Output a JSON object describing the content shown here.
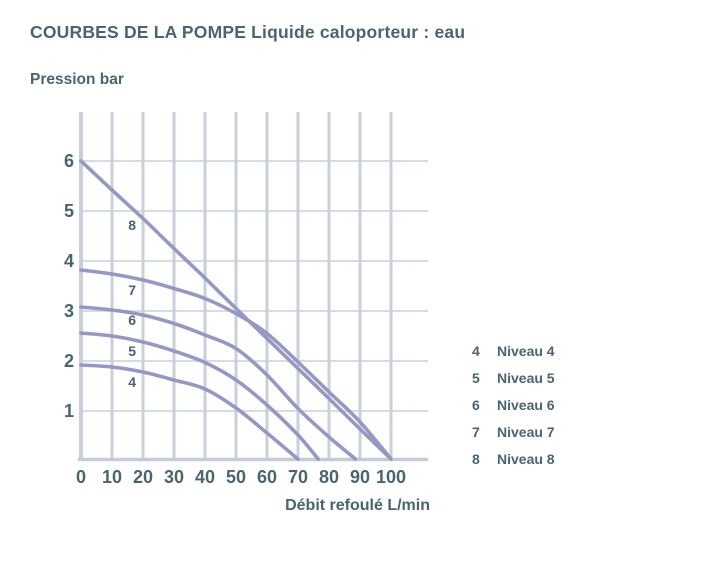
{
  "header": {
    "title_main": "COURBES DE LA POMPE",
    "title_sub": "Liquide caloporteur : eau"
  },
  "chart_data": {
    "type": "line",
    "title": "COURBES DE LA POMPE Liquide caloporteur : eau",
    "ylabel": "Pression bar",
    "xlabel": "Débit refoulé L/min",
    "xlim": [
      0,
      110
    ],
    "ylim": [
      0,
      7
    ],
    "x_ticks": [
      0,
      10,
      20,
      30,
      40,
      50,
      60,
      70,
      80,
      90,
      100
    ],
    "y_ticks": [
      1,
      2,
      3,
      4,
      5,
      6
    ],
    "grid": true,
    "legend_position": "right-middle",
    "colors": {
      "curve": "#9598c5",
      "grid": "#c8d1db",
      "axis": "#c3ccd7",
      "text": "#4a6470",
      "background": "#ffffff"
    },
    "series": [
      {
        "name": "Niveau 8",
        "curve_label": "8",
        "label_pos": [
          16.5,
          4.72
        ],
        "points": [
          [
            0,
            6.0
          ],
          [
            10,
            5.42
          ],
          [
            20,
            4.85
          ],
          [
            30,
            4.25
          ],
          [
            40,
            3.66
          ],
          [
            50,
            3.05
          ],
          [
            60,
            2.45
          ],
          [
            70,
            1.85
          ],
          [
            80,
            1.25
          ],
          [
            90,
            0.64
          ],
          [
            100,
            0.04
          ]
        ]
      },
      {
        "name": "Niveau 7",
        "curve_label": "7",
        "label_pos": [
          16.5,
          3.42
        ],
        "points": [
          [
            0,
            3.82
          ],
          [
            10,
            3.74
          ],
          [
            20,
            3.62
          ],
          [
            30,
            3.45
          ],
          [
            40,
            3.25
          ],
          [
            50,
            2.95
          ],
          [
            60,
            2.55
          ],
          [
            70,
            1.98
          ],
          [
            80,
            1.38
          ],
          [
            90,
            0.78
          ],
          [
            100,
            0.04
          ]
        ]
      },
      {
        "name": "Niveau 6",
        "curve_label": "6",
        "label_pos": [
          16.5,
          2.82
        ],
        "points": [
          [
            0,
            3.08
          ],
          [
            10,
            3.02
          ],
          [
            20,
            2.92
          ],
          [
            30,
            2.75
          ],
          [
            40,
            2.52
          ],
          [
            50,
            2.25
          ],
          [
            60,
            1.72
          ],
          [
            70,
            1.05
          ],
          [
            80,
            0.48
          ],
          [
            88.5,
            0.04
          ]
        ]
      },
      {
        "name": "Niveau 5",
        "curve_label": "5",
        "label_pos": [
          16.5,
          2.2
        ],
        "points": [
          [
            0,
            2.56
          ],
          [
            10,
            2.5
          ],
          [
            20,
            2.38
          ],
          [
            30,
            2.2
          ],
          [
            40,
            1.97
          ],
          [
            50,
            1.62
          ],
          [
            60,
            1.12
          ],
          [
            70,
            0.52
          ],
          [
            76.5,
            0.04
          ]
        ]
      },
      {
        "name": "Niveau 4",
        "curve_label": "4",
        "label_pos": [
          16.5,
          1.58
        ],
        "points": [
          [
            0,
            1.92
          ],
          [
            10,
            1.88
          ],
          [
            20,
            1.78
          ],
          [
            30,
            1.62
          ],
          [
            40,
            1.44
          ],
          [
            50,
            1.06
          ],
          [
            60,
            0.56
          ],
          [
            70,
            0.04
          ]
        ]
      }
    ]
  },
  "legend": {
    "items": [
      {
        "key": "4",
        "label": "Niveau 4"
      },
      {
        "key": "5",
        "label": "Niveau 5"
      },
      {
        "key": "6",
        "label": "Niveau 6"
      },
      {
        "key": "7",
        "label": "Niveau 7"
      },
      {
        "key": "8",
        "label": "Niveau 8"
      }
    ]
  }
}
